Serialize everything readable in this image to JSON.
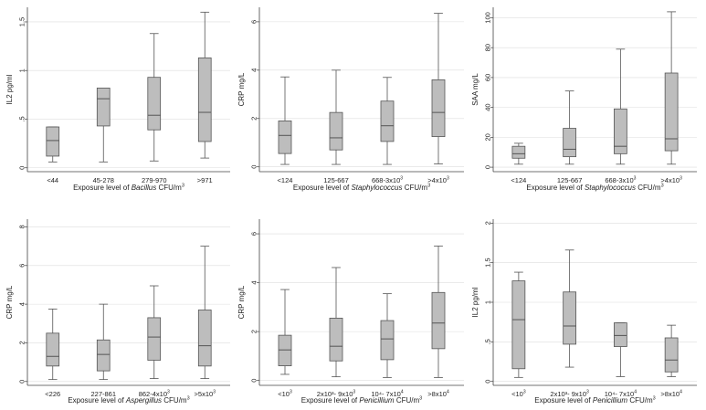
{
  "colors": {
    "box": "#bdbdbd",
    "stroke": "#555555",
    "grid": "#dddddd",
    "text": "#222222"
  },
  "chart_data": [
    {
      "type": "box",
      "ylabel": "IL2 pg/ml",
      "xlabel_pre": "Exposure level of ",
      "xlabel_it": "Bacillus",
      "xlabel_post": " CFU/m",
      "xlabel_sup": "3",
      "ylim": [
        -0.04,
        1.65
      ],
      "ticks": [
        {
          "v": 0,
          "label": "0"
        },
        {
          "v": 0.5,
          "label": ".5"
        },
        {
          "v": 1,
          "label": "1"
        },
        {
          "v": 1.5,
          "label": "1.5"
        }
      ],
      "categories": [
        {
          "base": "<44",
          "sup": ""
        },
        {
          "base": "45-278",
          "sup": ""
        },
        {
          "base": "279-970",
          "sup": ""
        },
        {
          "base": ">971",
          "sup": ""
        }
      ],
      "boxes": [
        {
          "min": 0.06,
          "q1": 0.12,
          "median": 0.28,
          "q3": 0.42,
          "max": 0.42
        },
        {
          "min": 0.06,
          "q1": 0.43,
          "median": 0.71,
          "q3": 0.82,
          "max": 0.82
        },
        {
          "min": 0.07,
          "q1": 0.39,
          "median": 0.54,
          "q3": 0.93,
          "max": 1.38
        },
        {
          "min": 0.1,
          "q1": 0.27,
          "median": 0.57,
          "q3": 1.13,
          "max": 1.6
        }
      ]
    },
    {
      "type": "box",
      "ylabel": "CRP mg/L",
      "xlabel_pre": "Exposure level of ",
      "xlabel_it": "Staphylococcus",
      "xlabel_post": " CFU/m",
      "xlabel_sup": "3",
      "ylim": [
        -0.2,
        6.6
      ],
      "ticks": [
        {
          "v": 0,
          "label": "0"
        },
        {
          "v": 2,
          "label": "2"
        },
        {
          "v": 4,
          "label": "4"
        },
        {
          "v": 6,
          "label": "6"
        }
      ],
      "categories": [
        {
          "base": "<124",
          "sup": ""
        },
        {
          "base": "125-667",
          "sup": ""
        },
        {
          "base": "668-3x10",
          "sup": "3"
        },
        {
          "base": ">4x10",
          "sup": "3"
        }
      ],
      "boxes": [
        {
          "min": 0.1,
          "q1": 0.55,
          "median": 1.3,
          "q3": 1.9,
          "max": 3.72
        },
        {
          "min": 0.1,
          "q1": 0.7,
          "median": 1.2,
          "q3": 2.25,
          "max": 4.0
        },
        {
          "min": 0.1,
          "q1": 1.05,
          "median": 1.7,
          "q3": 2.72,
          "max": 3.7
        },
        {
          "min": 0.12,
          "q1": 1.25,
          "median": 2.25,
          "q3": 3.6,
          "max": 6.35
        }
      ]
    },
    {
      "type": "box",
      "ylabel": "SAA mg/L",
      "xlabel_pre": "Exposure level of ",
      "xlabel_it": "Staphylococcus",
      "xlabel_post": " CFU/m",
      "xlabel_sup": "3",
      "ylim": [
        -3,
        107
      ],
      "ticks": [
        {
          "v": 0,
          "label": "0"
        },
        {
          "v": 20,
          "label": "20"
        },
        {
          "v": 40,
          "label": "40"
        },
        {
          "v": 60,
          "label": "60"
        },
        {
          "v": 80,
          "label": "80"
        },
        {
          "v": 100,
          "label": "100"
        }
      ],
      "categories": [
        {
          "base": "<124",
          "sup": ""
        },
        {
          "base": "125-667",
          "sup": ""
        },
        {
          "base": "668-3x10",
          "sup": "3"
        },
        {
          "base": ">4x10",
          "sup": "3"
        }
      ],
      "boxes": [
        {
          "min": 2,
          "q1": 6,
          "median": 9,
          "q3": 14,
          "max": 16
        },
        {
          "min": 2,
          "q1": 7,
          "median": 12,
          "q3": 26,
          "max": 51
        },
        {
          "min": 2,
          "q1": 9,
          "median": 14,
          "q3": 39,
          "max": 79
        },
        {
          "min": 2,
          "q1": 11,
          "median": 19,
          "q3": 63,
          "max": 104
        }
      ]
    },
    {
      "type": "box",
      "ylabel": "CRP mg/L",
      "xlabel_pre": "Exposure level of ",
      "xlabel_it": "Aspergillus",
      "xlabel_post": " CFU/m",
      "xlabel_sup": "3",
      "ylim": [
        -0.2,
        8.4
      ],
      "ticks": [
        {
          "v": 0,
          "label": "0"
        },
        {
          "v": 2,
          "label": "2"
        },
        {
          "v": 4,
          "label": "4"
        },
        {
          "v": 6,
          "label": "6"
        },
        {
          "v": 8,
          "label": "8"
        }
      ],
      "categories": [
        {
          "base": "<226",
          "sup": ""
        },
        {
          "base": "227-861",
          "sup": ""
        },
        {
          "base": "862-4x10",
          "sup": "3"
        },
        {
          "base": ">5x10",
          "sup": "3"
        }
      ],
      "boxes": [
        {
          "min": 0.1,
          "q1": 0.8,
          "median": 1.3,
          "q3": 2.5,
          "max": 3.75
        },
        {
          "min": 0.1,
          "q1": 0.55,
          "median": 1.4,
          "q3": 2.15,
          "max": 4.0
        },
        {
          "min": 0.15,
          "q1": 1.1,
          "median": 2.3,
          "q3": 3.3,
          "max": 4.95
        },
        {
          "min": 0.15,
          "q1": 0.8,
          "median": 1.85,
          "q3": 3.7,
          "max": 7.0
        }
      ]
    },
    {
      "type": "box",
      "ylabel": "CRP mg/L",
      "xlabel_pre": "Exposure level of ",
      "xlabel_it": "Penicillium",
      "xlabel_post": " CFU/m",
      "xlabel_sup": "3",
      "ylim": [
        -0.2,
        6.6
      ],
      "ticks": [
        {
          "v": 0,
          "label": "0"
        },
        {
          "v": 2,
          "label": "2"
        },
        {
          "v": 4,
          "label": "4"
        },
        {
          "v": 6,
          "label": "6"
        }
      ],
      "categories": [
        {
          "base": "<10",
          "sup": "3"
        },
        {
          "base": "2x10³- 9x10",
          "sup": "3"
        },
        {
          "base": "10⁴- 7x10",
          "sup": "4"
        },
        {
          "base": ">8x10",
          "sup": "4"
        }
      ],
      "boxes": [
        {
          "min": 0.25,
          "q1": 0.6,
          "median": 1.25,
          "q3": 1.85,
          "max": 3.72
        },
        {
          "min": 0.15,
          "q1": 0.8,
          "median": 1.4,
          "q3": 2.55,
          "max": 4.62
        },
        {
          "min": 0.12,
          "q1": 0.85,
          "median": 1.7,
          "q3": 2.45,
          "max": 3.55
        },
        {
          "min": 0.12,
          "q1": 1.3,
          "median": 2.35,
          "q3": 3.6,
          "max": 5.5
        }
      ]
    },
    {
      "type": "box",
      "ylabel": "IL2 pg/ml",
      "xlabel_pre": "Exposure level of ",
      "xlabel_it": "Penicillium",
      "xlabel_post": " CFU/m",
      "xlabel_sup": "3",
      "ylim": [
        -0.05,
        2.05
      ],
      "ticks": [
        {
          "v": 0,
          "label": "0"
        },
        {
          "v": 0.5,
          "label": ".5"
        },
        {
          "v": 1,
          "label": "1"
        },
        {
          "v": 1.5,
          "label": "1.5"
        },
        {
          "v": 2,
          "label": "2"
        }
      ],
      "categories": [
        {
          "base": "<10",
          "sup": "3"
        },
        {
          "base": "2x10³- 9x10",
          "sup": "3"
        },
        {
          "base": "10⁴- 7x10",
          "sup": "4"
        },
        {
          "base": ">8x10",
          "sup": "4"
        }
      ],
      "boxes": [
        {
          "min": 0.05,
          "q1": 0.16,
          "median": 0.78,
          "q3": 1.27,
          "max": 1.38
        },
        {
          "min": 0.18,
          "q1": 0.47,
          "median": 0.7,
          "q3": 1.13,
          "max": 1.66
        },
        {
          "min": 0.06,
          "q1": 0.44,
          "median": 0.58,
          "q3": 0.74,
          "max": 0.74
        },
        {
          "min": 0.06,
          "q1": 0.12,
          "median": 0.27,
          "q3": 0.55,
          "max": 0.71
        }
      ]
    }
  ]
}
